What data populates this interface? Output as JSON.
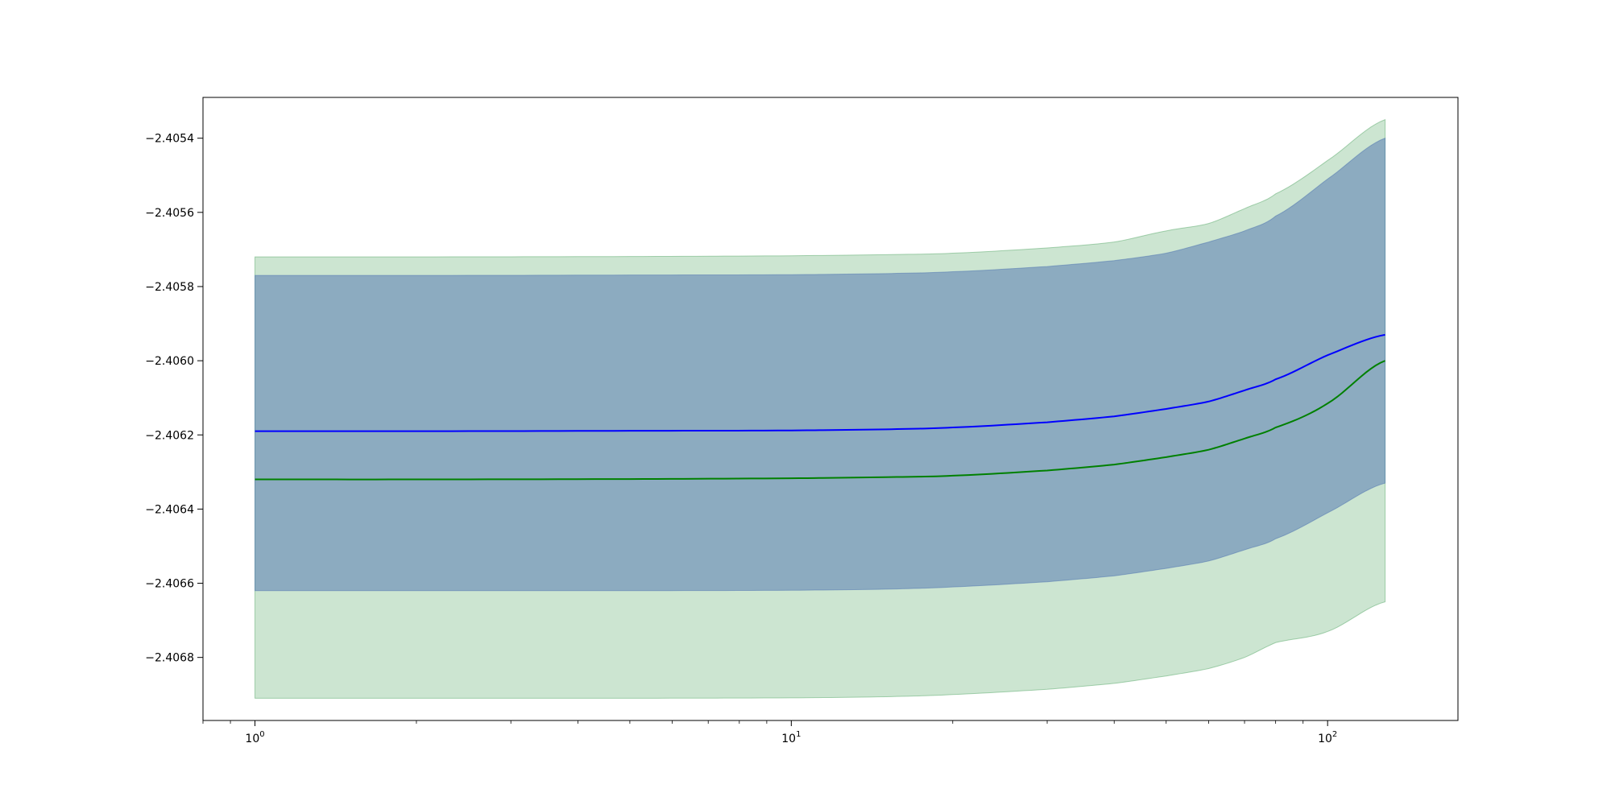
{
  "chart_data": {
    "type": "line",
    "title": "",
    "xlabel": "",
    "ylabel": "",
    "xscale": "log",
    "xlim": [
      0.8,
      175
    ],
    "ylim": [
      -2.40697,
      -2.40529
    ],
    "x_ticks": [
      1,
      10,
      100
    ],
    "x_tick_labels": [
      {
        "base": "10",
        "exp": "0"
      },
      {
        "base": "10",
        "exp": "1"
      },
      {
        "base": "10",
        "exp": "2"
      }
    ],
    "y_ticks": [
      -2.4054,
      -2.4056,
      -2.4058,
      -2.406,
      -2.4062,
      -2.4064,
      -2.4066,
      -2.4068
    ],
    "y_tick_labels": [
      "−2.4054",
      "−2.4056",
      "−2.4058",
      "−2.4060",
      "−2.4062",
      "−2.4064",
      "−2.4066",
      "−2.4068"
    ],
    "grid": false,
    "legend": "none",
    "x": [
      1,
      2,
      5,
      10,
      15,
      20,
      30,
      40,
      50,
      60,
      70,
      80,
      100,
      128
    ],
    "series": [
      {
        "color": "#0000ff",
        "band_color": "#4c72b0",
        "values": [
          -2.40619,
          -2.40619,
          -2.406189,
          -2.406188,
          -2.406185,
          -2.40618,
          -2.406166,
          -2.40615,
          -2.40613,
          -2.40611,
          -2.40608,
          -2.40605,
          -2.405985,
          -2.40593
        ],
        "lower": [
          -2.40662,
          -2.40662,
          -2.40662,
          -2.406619,
          -2.406616,
          -2.40661,
          -2.406596,
          -2.40658,
          -2.40656,
          -2.40654,
          -2.40651,
          -2.40648,
          -2.40641,
          -2.40633
        ],
        "upper": [
          -2.40577,
          -2.40577,
          -2.405769,
          -2.405768,
          -2.405765,
          -2.40576,
          -2.405746,
          -2.40573,
          -2.40571,
          -2.40568,
          -2.40565,
          -2.40561,
          -2.40551,
          -2.4054
        ]
      },
      {
        "color": "#008000",
        "band_color": "#55a868",
        "values": [
          -2.40632,
          -2.40632,
          -2.406319,
          -2.406317,
          -2.406314,
          -2.40631,
          -2.406296,
          -2.40628,
          -2.40626,
          -2.40624,
          -2.40621,
          -2.40618,
          -2.406115,
          -2.406
        ],
        "lower": [
          -2.40691,
          -2.40691,
          -2.40691,
          -2.406909,
          -2.406906,
          -2.4069,
          -2.406886,
          -2.40687,
          -2.40685,
          -2.40683,
          -2.4068,
          -2.40676,
          -2.40673,
          -2.40665
        ],
        "upper": [
          -2.40572,
          -2.40572,
          -2.405719,
          -2.405717,
          -2.405714,
          -2.40571,
          -2.405696,
          -2.40568,
          -2.40565,
          -2.40563,
          -2.40559,
          -2.40555,
          -2.40546,
          -2.40535
        ]
      }
    ]
  }
}
